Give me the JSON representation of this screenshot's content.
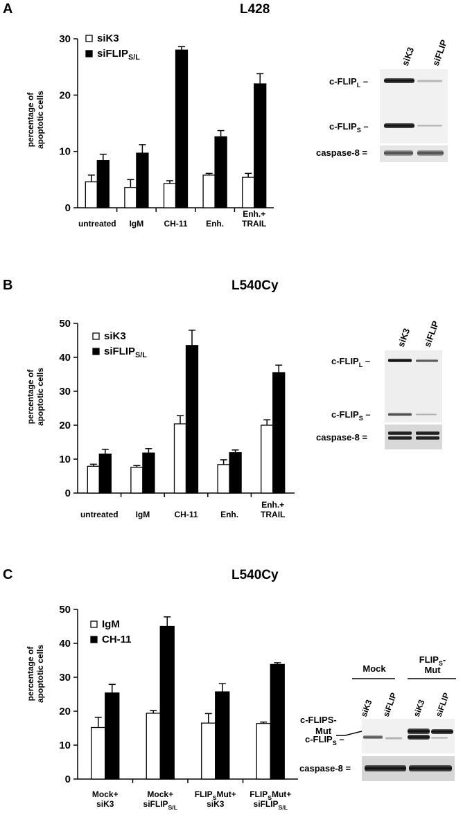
{
  "panels": [
    {
      "letter": "A",
      "title": "L428",
      "ylabel_line1": "percentage of",
      "ylabel_line2": "apoptotic cells",
      "blot": {
        "lanes": [
          "siK3",
          "siFLIP"
        ],
        "group_labels": [],
        "band_labels": {
          "flip_l": {
            "base": "c-FLIP",
            "sub": "L"
          },
          "flip_s": {
            "base": "c-FLIP",
            "sub": "S"
          },
          "flip_mut": {
            "line1": "",
            "line2": ""
          },
          "caspase": "caspase-8 ="
        }
      }
    },
    {
      "letter": "B",
      "title": "L540Cy",
      "ylabel_line1": "percentage of",
      "ylabel_line2": "apoptotic cells",
      "blot": {
        "lanes": [
          "siK3",
          "siFLIP"
        ],
        "group_labels": [],
        "band_labels": {
          "flip_l": {
            "base": "c-FLIP",
            "sub": "L"
          },
          "flip_s": {
            "base": "c-FLIP",
            "sub": "S"
          },
          "flip_mut": {
            "line1": "",
            "line2": ""
          },
          "caspase": "caspase-8 ="
        }
      }
    },
    {
      "letter": "C",
      "title": "L540Cy",
      "ylabel_line1": "percentage of",
      "ylabel_line2": "apoptotic cells",
      "blot": {
        "lanes": [
          "siK3",
          "siFLIP",
          "siK3",
          "siFLIP"
        ],
        "group_labels": [
          "Mock",
          "FLIPS-Mut"
        ],
        "band_labels": {
          "flip_l": {
            "base": "",
            "sub": ""
          },
          "flip_s": {
            "base": "c-FLIP",
            "sub": "S"
          },
          "flip_mut": {
            "line1": "c-FLIPS-",
            "line2": "Mut"
          },
          "caspase": "caspase-8 ="
        }
      }
    }
  ],
  "chart_data": [
    {
      "type": "bar",
      "title": "L428",
      "ylabel": "percentage of apoptotic cells",
      "ylim": [
        0,
        30
      ],
      "yticks": [
        0,
        10,
        20,
        30
      ],
      "grid": false,
      "legend_position": "top-left",
      "categories": [
        [
          "untreated"
        ],
        [
          "IgM"
        ],
        [
          "CH-11"
        ],
        [
          "Enh."
        ],
        [
          "Enh.+",
          "TRAIL"
        ]
      ],
      "series": [
        {
          "name": "siK3",
          "fill": "white",
          "values": [
            4.6,
            3.6,
            4.3,
            5.8,
            5.4
          ],
          "errors": [
            1.2,
            1.4,
            0.5,
            0.3,
            0.7
          ]
        },
        {
          "name": "siFLIPS/L",
          "fill": "black",
          "values": [
            8.4,
            9.7,
            28.0,
            12.6,
            22.0
          ],
          "errors": [
            1.1,
            1.5,
            0.6,
            1.1,
            1.8
          ]
        }
      ]
    },
    {
      "type": "bar",
      "title": "L540Cy",
      "ylabel": "percentage of apoptotic cells",
      "ylim": [
        0,
        50
      ],
      "yticks": [
        0,
        10,
        20,
        30,
        40,
        50
      ],
      "grid": false,
      "legend_position": "top-left",
      "categories": [
        [
          "untreated"
        ],
        [
          "IgM"
        ],
        [
          "CH-11"
        ],
        [
          "Enh."
        ],
        [
          "Enh.+",
          "TRAIL"
        ]
      ],
      "series": [
        {
          "name": "siK3",
          "fill": "white",
          "values": [
            7.9,
            7.6,
            20.4,
            8.4,
            20.0
          ],
          "errors": [
            0.6,
            0.5,
            2.4,
            1.4,
            1.6
          ]
        },
        {
          "name": "siFLIPS/L",
          "fill": "black",
          "values": [
            11.5,
            11.8,
            43.5,
            11.9,
            35.5
          ],
          "errors": [
            1.4,
            1.3,
            4.5,
            0.8,
            2.2
          ]
        }
      ]
    },
    {
      "type": "bar",
      "title": "L540Cy",
      "ylabel": "percentage of apoptotic cells",
      "ylim": [
        0,
        50
      ],
      "yticks": [
        0,
        10,
        20,
        30,
        40,
        50
      ],
      "grid": false,
      "legend_position": "top-left",
      "categories": [
        [
          "Mock+",
          "siK3"
        ],
        [
          "Mock+",
          "siFLIPS/L"
        ],
        [
          "FLIPSMut+",
          "siK3"
        ],
        [
          "FLIPSMut+",
          "siFLIPS/L"
        ]
      ],
      "series": [
        {
          "name": "IgM",
          "fill": "white",
          "values": [
            15.2,
            19.4,
            16.5,
            16.4
          ],
          "errors": [
            3.0,
            0.8,
            2.8,
            0.4
          ]
        },
        {
          "name": "CH-11",
          "fill": "black",
          "values": [
            25.4,
            45.0,
            25.7,
            33.8
          ],
          "errors": [
            2.5,
            2.8,
            2.4,
            0.5
          ]
        }
      ]
    }
  ]
}
